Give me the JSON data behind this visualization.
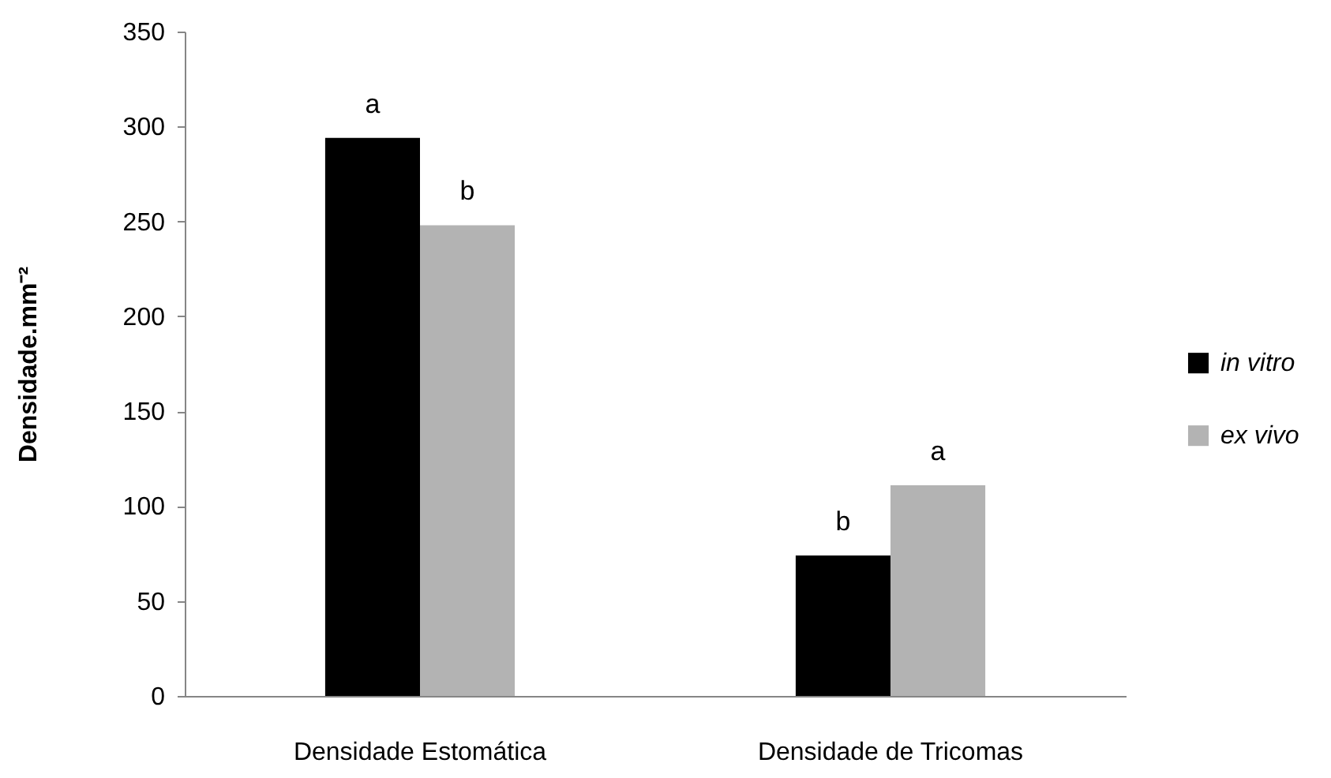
{
  "chart_data": {
    "type": "bar",
    "ylabel": "Densidade.mm⁻²",
    "categories": [
      "Densidade Estomática",
      "Densidade de Tricomas"
    ],
    "series": [
      {
        "name": "in vitro",
        "color": "#000000",
        "values": [
          294,
          74
        ],
        "value_labels": [
          "a",
          "b"
        ]
      },
      {
        "name": "ex vivo",
        "color": "#b3b3b3",
        "values": [
          248,
          111
        ],
        "value_labels": [
          "b",
          "a"
        ]
      }
    ],
    "ylim": [
      0,
      350
    ],
    "yticks": [
      0,
      50,
      100,
      150,
      200,
      250,
      300,
      350
    ],
    "legend": "right"
  }
}
